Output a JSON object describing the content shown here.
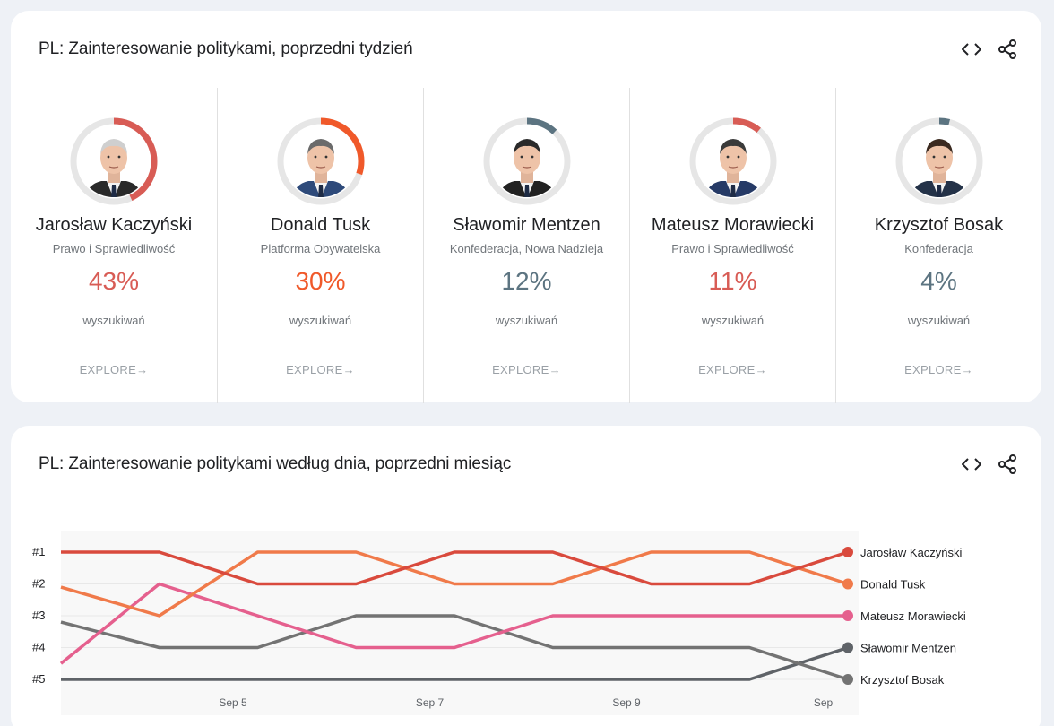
{
  "panel1": {
    "title": "PL: Zainteresowanie politykami, poprzedni tydzień",
    "embed_icon": "code-icon",
    "share_icon": "share-icon",
    "people": [
      {
        "name": "Jarosław Kaczyński",
        "party": "Prawo i Sprawiedliwość",
        "percent": "43%",
        "value": 43,
        "label": "wyszukiwań",
        "explore": "EXPLORE",
        "color": "#d85c55"
      },
      {
        "name": "Donald Tusk",
        "party": "Platforma Obywatelska",
        "percent": "30%",
        "value": 30,
        "label": "wyszukiwań",
        "explore": "EXPLORE",
        "color": "#f0592a"
      },
      {
        "name": "Sławomir Mentzen",
        "party": "Konfederacja, Nowa Nadzieja",
        "percent": "12%",
        "value": 12,
        "label": "wyszukiwań",
        "explore": "EXPLORE",
        "color": "#5c7481"
      },
      {
        "name": "Mateusz Morawiecki",
        "party": "Prawo i Sprawiedliwość",
        "percent": "11%",
        "value": 11,
        "label": "wyszukiwań",
        "explore": "EXPLORE",
        "color": "#d85c55"
      },
      {
        "name": "Krzysztof Bosak",
        "party": "Konfederacja",
        "percent": "4%",
        "value": 4,
        "label": "wyszukiwań",
        "explore": "EXPLORE",
        "color": "#5c7481"
      }
    ]
  },
  "panel2": {
    "title": "PL: Zainteresowanie politykami według dnia, poprzedni miesiąc",
    "embed_icon": "code-icon",
    "share_icon": "share-icon"
  },
  "chart_data": {
    "type": "line",
    "y_labels": [
      "#1",
      "#2",
      "#3",
      "#4",
      "#5"
    ],
    "y_axis": "rank (1 = top)",
    "x_tick_labels": [
      "Sep 5",
      "Sep 7",
      "Sep 9",
      "Sep"
    ],
    "x_tick_index": [
      1.75,
      3.75,
      5.75,
      7.75
    ],
    "series": [
      {
        "name": "Jarosław Kaczyński",
        "color": "#d94a3d",
        "values": [
          1,
          1,
          2,
          2,
          1,
          1,
          2,
          2,
          1
        ]
      },
      {
        "name": "Donald Tusk",
        "color": "#f07a4a",
        "values": [
          2.1,
          3,
          1,
          1,
          2,
          2,
          1,
          1,
          2
        ]
      },
      {
        "name": "Mateusz Morawiecki",
        "color": "#e5608e",
        "values": [
          4.5,
          2,
          3,
          4,
          4,
          3,
          3,
          3,
          3
        ]
      },
      {
        "name": "Krzysztof Bosak",
        "color": "#737373",
        "values": [
          3.2,
          4,
          4,
          3,
          3,
          4,
          4,
          4,
          5
        ]
      },
      {
        "name": "Sławomir Mentzen",
        "color": "#5f6368",
        "values": [
          5,
          5,
          5,
          5,
          5,
          5,
          5,
          5,
          4
        ]
      }
    ],
    "legend_order": [
      "Jarosław Kaczyński",
      "Donald Tusk",
      "Mateusz Morawiecki",
      "Krzysztof Bosak",
      "Sławomir Mentzen"
    ],
    "legend_placement": "right",
    "grid": true
  }
}
